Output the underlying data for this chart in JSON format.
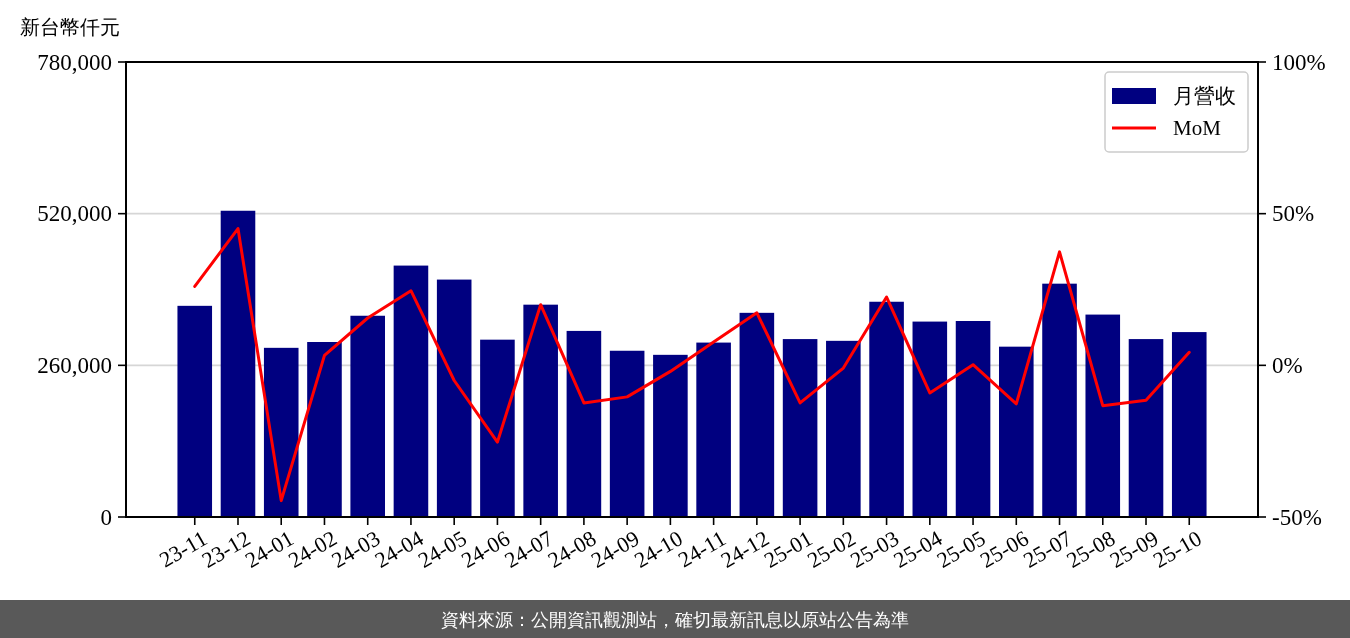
{
  "chart_data": {
    "type": "bar",
    "ylabel": "新台幣仟元",
    "categories": [
      "23-11",
      "23-12",
      "24-01",
      "24-02",
      "24-03",
      "24-04",
      "24-05",
      "24-06",
      "24-07",
      "24-08",
      "24-09",
      "24-10",
      "24-11",
      "24-12",
      "25-01",
      "25-02",
      "25-03",
      "25-04",
      "25-05",
      "25-06",
      "25-07",
      "25-08",
      "25-09",
      "25-10"
    ],
    "series": [
      {
        "name": "月營收",
        "color": "#000080",
        "values": [
          362000,
          525000,
          290000,
          300000,
          345000,
          431000,
          407000,
          304000,
          364000,
          319000,
          285000,
          278000,
          299000,
          350000,
          305000,
          302000,
          369000,
          335000,
          336000,
          292000,
          400000,
          347000,
          305000,
          317000
        ]
      },
      {
        "name": "MoM",
        "type": "line",
        "axis": "y2",
        "color": "#ff0000",
        "values": [
          26.0,
          45.1,
          -44.6,
          3.3,
          15.6,
          24.6,
          -5.0,
          -25.3,
          20.0,
          -12.4,
          -10.4,
          -2.0,
          7.7,
          17.3,
          -12.4,
          -0.9,
          22.5,
          -9.1,
          0.2,
          -12.7,
          37.4,
          -13.3,
          -11.5,
          4.3
        ]
      }
    ],
    "ylim": [
      0,
      780000
    ],
    "yticks": [
      0,
      {
        "value": 260000,
        "label": "260,000"
      },
      {
        "value": 520000,
        "label": "520,000"
      },
      {
        "value": 780000,
        "label": "780,000"
      }
    ],
    "y2lim": [
      -50,
      100
    ],
    "y2ticks": [
      {
        "value": -50,
        "label": "-50%"
      },
      {
        "value": 0,
        "label": "0%"
      },
      {
        "value": 50,
        "label": "50%"
      },
      {
        "value": 100,
        "label": "100%"
      }
    ],
    "grid": "y",
    "legend": "top right",
    "line_style": "solid",
    "annotations": [
      "資料來源：公開資訊觀測站，確切最新訊息以原站公告為準"
    ]
  }
}
